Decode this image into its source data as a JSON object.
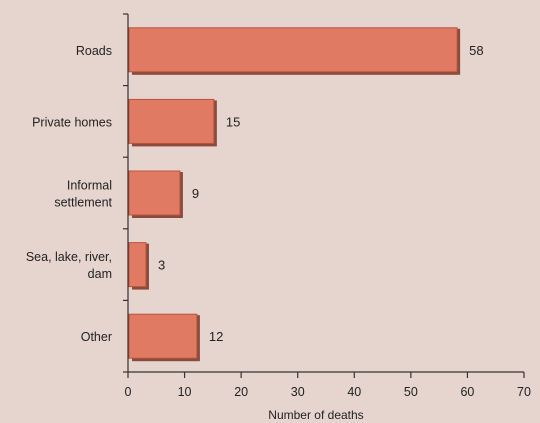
{
  "chart_data": {
    "type": "bar",
    "orientation": "horizontal",
    "categories": [
      [
        "Roads"
      ],
      [
        "Private homes"
      ],
      [
        "Informal",
        "settlement"
      ],
      [
        "Sea, lake, river,",
        "dam"
      ],
      [
        "Other"
      ]
    ],
    "values": [
      58,
      15,
      9,
      3,
      12
    ],
    "data_labels": [
      "58",
      "15",
      "9",
      "3",
      "12"
    ],
    "xlabel": "Number of deaths",
    "ylabel": "",
    "title": "",
    "xlim": [
      0,
      70
    ],
    "xticks": [
      0,
      10,
      20,
      30,
      40,
      50,
      60,
      70
    ],
    "grid": false,
    "legend": "none",
    "colors": {
      "bar": "#e07a63",
      "bar_edge": "#b8553f",
      "bar_shadow": "#8a4a3c",
      "axis": "#333333",
      "background": "#e6d5cf"
    }
  }
}
